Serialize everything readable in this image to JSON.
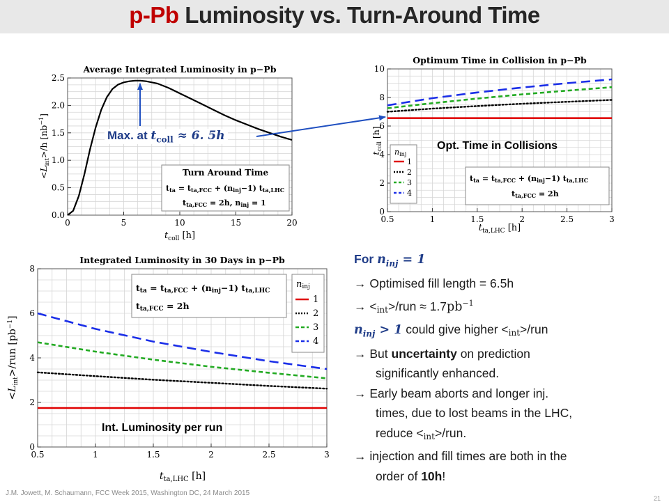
{
  "slide": {
    "title_accent": "p-Pb",
    "title_rest": " Luminosity vs. Turn-Around Time",
    "footer": "J.M. Jowett, M. Schaumann, FCC Week 2015, Washington DC, 24 March 2015",
    "slide_number": "21"
  },
  "annotations": {
    "max_label": "Max. at ",
    "max_math": "t",
    "max_math_sub": "coll",
    "max_math_rest": " ≈ 6. 5h",
    "opt_time": "Opt. Time in Collisions",
    "int_lumi": "Int. Luminosity per run"
  },
  "text_panel": {
    "l1_pre": "For ",
    "l1_math": "n",
    "l1_sub": "inj",
    "l1_eq": " = 1",
    "l2": "→ Optimised fill length = 6.5h",
    "l3_pre": "→ <",
    "l3_sub": "int",
    "l3_mid": ">/run ≈ 1.7",
    "l3_unit": "pb",
    "l3_exp": "−1",
    "l4_math": "n",
    "l4_sub": "inj",
    "l4_gt": " > 1",
    "l4_rest": " could give higher <",
    "l4_sub2": "int",
    "l4_end": ">/run",
    "l5_pre": "→ But ",
    "l5_bold": "uncertainty",
    "l5_post": " on prediction",
    "l6": "significantly enhanced.",
    "l7": "→ Early beam aborts and longer inj.",
    "l8": "times, due to lost beams in the LHC,",
    "l9_pre": "reduce <",
    "l9_sub": "int",
    "l9_post": ">/run.",
    "l10": "→ injection and fill times are both in the",
    "l11_pre": "order of ",
    "l11_bold": "10h",
    "l11_post": "!"
  },
  "chart_data": [
    {
      "type": "line",
      "title": "Average Integrated Luminosity in p−Pb",
      "xlabel": "t_coll [h]",
      "ylabel": "<L_int>/h [nb^-1]",
      "xlim": [
        0,
        20
      ],
      "ylim": [
        0,
        2.5
      ],
      "xticks": [
        0,
        5,
        10,
        15,
        20
      ],
      "yticks": [
        0.0,
        0.5,
        1.0,
        1.5,
        2.0,
        2.5
      ],
      "grid": true,
      "legend_title": "Turn Around Time",
      "legend_lines": [
        "t_ta = t_ta,FCC + (n_inj−1) t_ta,LHC",
        "t_ta,FCC = 2h, n_inj = 1"
      ],
      "legend_position": "bottom-right",
      "series": [
        {
          "name": "",
          "color": "#000000",
          "x": [
            0,
            0.5,
            1,
            1.5,
            2,
            2.5,
            3,
            3.5,
            4,
            4.5,
            5,
            5.5,
            6,
            6.5,
            7,
            8,
            9,
            10,
            11,
            12,
            13,
            14,
            15,
            16,
            17,
            18,
            19,
            20
          ],
          "y": [
            0.0,
            0.08,
            0.35,
            0.75,
            1.2,
            1.6,
            1.92,
            2.15,
            2.3,
            2.38,
            2.42,
            2.44,
            2.45,
            2.45,
            2.44,
            2.4,
            2.32,
            2.22,
            2.12,
            2.02,
            1.92,
            1.82,
            1.73,
            1.65,
            1.57,
            1.5,
            1.43,
            1.37
          ]
        }
      ]
    },
    {
      "type": "line",
      "title": "Optimum Time in Collision in p−Pb",
      "xlabel": "t_ta,LHC [h]",
      "ylabel": "t_coll [h]",
      "xlim": [
        0.5,
        3.0
      ],
      "ylim": [
        0,
        10
      ],
      "xticks": [
        0.5,
        1.0,
        1.5,
        2.0,
        2.5,
        3.0
      ],
      "yticks": [
        0,
        2,
        4,
        6,
        8,
        10
      ],
      "grid": true,
      "legend_title": "n_inj",
      "legend_lines": [
        "t_ta = t_ta,FCC + (n_inj−1) t_ta,LHC",
        "t_ta,FCC = 2h"
      ],
      "legend_position": "bottom",
      "series": [
        {
          "name": "1",
          "color": "#e00000",
          "dash": "solid",
          "x": [
            0.5,
            3.0
          ],
          "y": [
            6.55,
            6.55
          ]
        },
        {
          "name": "2",
          "color": "#000000",
          "dash": "dot",
          "x": [
            0.5,
            1.0,
            1.5,
            2.0,
            2.5,
            3.0
          ],
          "y": [
            7.0,
            7.22,
            7.4,
            7.56,
            7.7,
            7.83
          ]
        },
        {
          "name": "3",
          "color": "#22aa22",
          "dash": "dash",
          "x": [
            0.5,
            1.0,
            1.5,
            2.0,
            2.5,
            3.0
          ],
          "y": [
            7.25,
            7.6,
            7.92,
            8.22,
            8.48,
            8.72
          ]
        },
        {
          "name": "4",
          "color": "#1a2ee8",
          "dash": "longdash",
          "x": [
            0.5,
            1.0,
            1.5,
            2.0,
            2.5,
            3.0
          ],
          "y": [
            7.45,
            7.95,
            8.35,
            8.7,
            9.0,
            9.27
          ]
        }
      ]
    },
    {
      "type": "line",
      "title": "Integrated Luminosity in 30 Days in p−Pb",
      "xlabel": "t_ta,LHC [h]",
      "ylabel": "<L_int>/run [pb^-1]",
      "xlim": [
        0.5,
        3.0
      ],
      "ylim": [
        0,
        8
      ],
      "xticks": [
        0.5,
        1.0,
        1.5,
        2.0,
        2.5,
        3.0
      ],
      "yticks": [
        0,
        2,
        4,
        6,
        8
      ],
      "grid": true,
      "legend_title": "n_inj",
      "legend_lines": [
        "t_ta = t_ta,FCC + (n_inj−1) t_ta,LHC",
        "t_ta,FCC = 2h"
      ],
      "legend_position": "top",
      "series": [
        {
          "name": "1",
          "color": "#e00000",
          "dash": "solid",
          "x": [
            0.5,
            3.0
          ],
          "y": [
            1.75,
            1.75
          ]
        },
        {
          "name": "2",
          "color": "#000000",
          "dash": "dot",
          "x": [
            0.5,
            1.0,
            1.5,
            2.0,
            2.5,
            3.0
          ],
          "y": [
            3.35,
            3.18,
            3.02,
            2.88,
            2.74,
            2.62
          ]
        },
        {
          "name": "3",
          "color": "#22aa22",
          "dash": "dash",
          "x": [
            0.5,
            1.0,
            1.5,
            2.0,
            2.5,
            3.0
          ],
          "y": [
            4.7,
            4.28,
            3.92,
            3.6,
            3.33,
            3.08
          ]
        },
        {
          "name": "4",
          "color": "#1a2ee8",
          "dash": "longdash",
          "x": [
            0.5,
            1.0,
            1.5,
            2.0,
            2.5,
            3.0
          ],
          "y": [
            6.0,
            5.3,
            4.73,
            4.27,
            3.85,
            3.5
          ]
        }
      ]
    }
  ],
  "colors": {
    "accent": "#c00000",
    "annotation": "#1f3c88",
    "arrow": "#1f4fc0"
  }
}
